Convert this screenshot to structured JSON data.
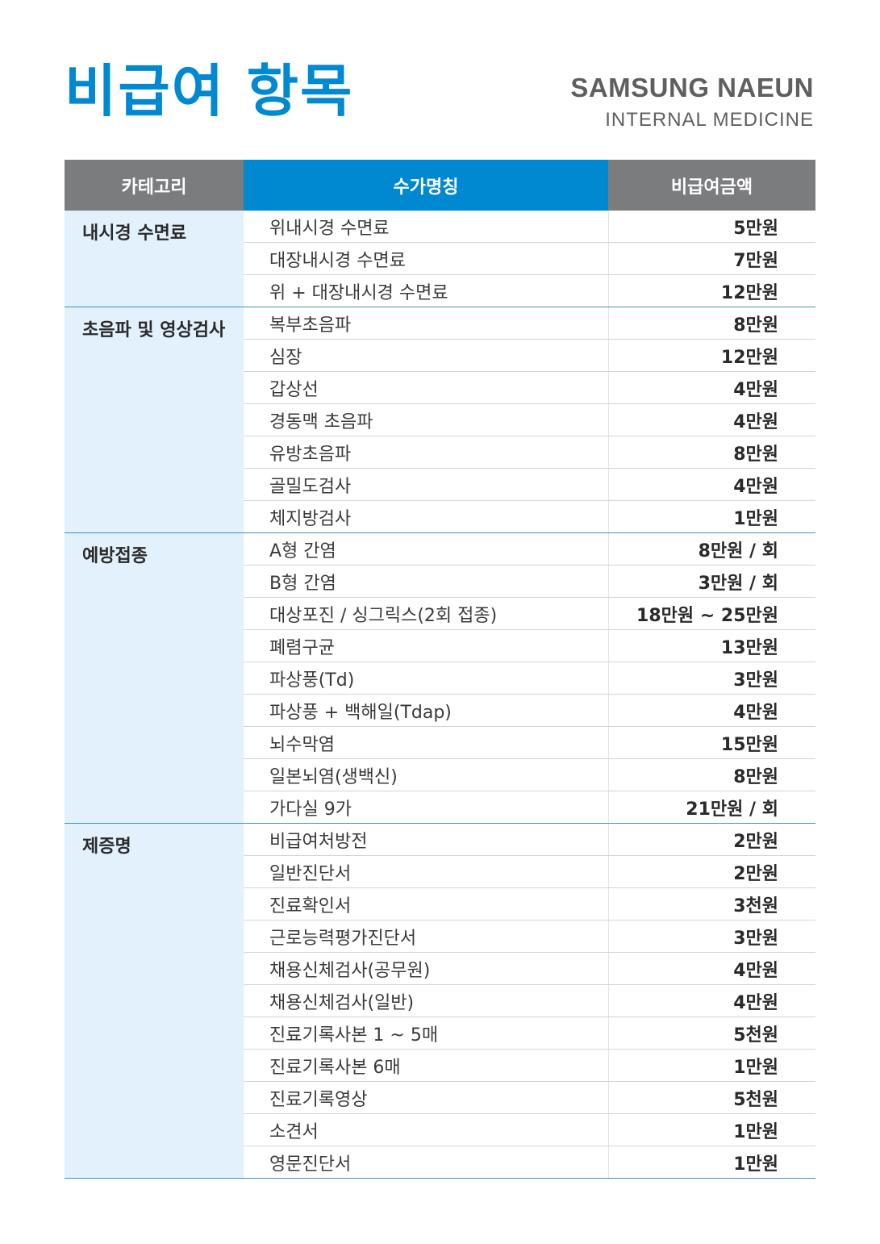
{
  "title": "비급여 항목",
  "brand": {
    "name": "SAMSUNG NAEUN",
    "sub": "INTERNAL MEDICINE"
  },
  "colors": {
    "accent": "#0088d1",
    "header_gray": "#7b7c7e",
    "category_bg": "#e2f1fc"
  },
  "table": {
    "headers": [
      "카테고리",
      "수가명칭",
      "비급여금액"
    ],
    "groups": [
      {
        "category": "내시경 수면료",
        "items": [
          {
            "name": "위내시경 수면료",
            "price": "5만원"
          },
          {
            "name": "대장내시경 수면료",
            "price": "7만원"
          },
          {
            "name": "위 + 대장내시경 수면료",
            "price": "12만원"
          }
        ]
      },
      {
        "category": "초음파 및 영상검사",
        "items": [
          {
            "name": "복부초음파",
            "price": "8만원"
          },
          {
            "name": "심장",
            "price": "12만원"
          },
          {
            "name": "갑상선",
            "price": "4만원"
          },
          {
            "name": "경동맥 초음파",
            "price": "4만원"
          },
          {
            "name": "유방초음파",
            "price": "8만원"
          },
          {
            "name": "골밀도검사",
            "price": "4만원"
          },
          {
            "name": "체지방검사",
            "price": "1만원"
          }
        ]
      },
      {
        "category": "예방접종",
        "items": [
          {
            "name": "A형 간염",
            "price": "8만원 / 회"
          },
          {
            "name": "B형 간염",
            "price": "3만원 / 회"
          },
          {
            "name": "대상포진 / 싱그릭스(2회 접종)",
            "price": "18만원 ~ 25만원"
          },
          {
            "name": "폐렴구균",
            "price": "13만원"
          },
          {
            "name": "파상풍(Td)",
            "price": "3만원"
          },
          {
            "name": "파상풍 + 백해일(Tdap)",
            "price": "4만원"
          },
          {
            "name": "뇌수막염",
            "price": "15만원"
          },
          {
            "name": "일본뇌염(생백신)",
            "price": "8만원"
          },
          {
            "name": "가다실 9가",
            "price": "21만원 / 회"
          }
        ]
      },
      {
        "category": "제증명",
        "items": [
          {
            "name": "비급여처방전",
            "price": "2만원"
          },
          {
            "name": "일반진단서",
            "price": "2만원"
          },
          {
            "name": "진료확인서",
            "price": "3천원"
          },
          {
            "name": "근로능력평가진단서",
            "price": "3만원"
          },
          {
            "name": "채용신체검사(공무원)",
            "price": "4만원"
          },
          {
            "name": "채용신체검사(일반)",
            "price": "4만원"
          },
          {
            "name": "진료기록사본 1 ~ 5매",
            "price": "5천원"
          },
          {
            "name": "진료기록사본 6매",
            "price": "1만원"
          },
          {
            "name": "진료기록영상",
            "price": "5천원"
          },
          {
            "name": "소견서",
            "price": "1만원"
          },
          {
            "name": "영문진단서",
            "price": "1만원"
          }
        ]
      }
    ]
  }
}
